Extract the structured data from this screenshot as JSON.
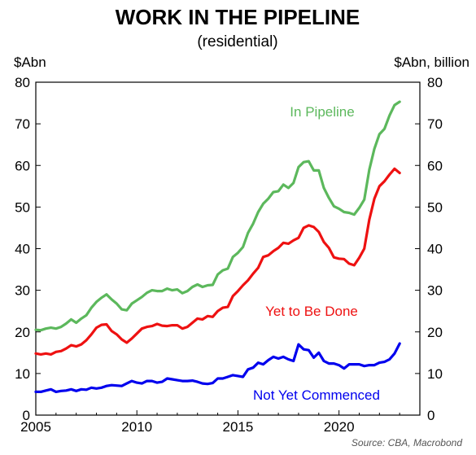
{
  "chart_data": {
    "type": "line",
    "title": "WORK IN THE PIPELINE",
    "subtitle": "(residential)",
    "ylabel_left": "$Abn",
    "ylabel_right": "$Abn, billion",
    "source": "Source: CBA, Macrobond",
    "xlim": [
      2005,
      2024
    ],
    "ylim": [
      0,
      80
    ],
    "x_ticks": [
      2005,
      2010,
      2015,
      2020
    ],
    "y_ticks": [
      0,
      10,
      20,
      30,
      40,
      50,
      60,
      70,
      80
    ],
    "grid": false,
    "colors": {
      "in_pipeline": "#5cb85c",
      "yet_to_be_done": "#ee1111",
      "not_yet_commenced": "#0000ee"
    },
    "x": [
      2005.0,
      2005.25,
      2005.5,
      2005.75,
      2006.0,
      2006.25,
      2006.5,
      2006.75,
      2007.0,
      2007.25,
      2007.5,
      2007.75,
      2008.0,
      2008.25,
      2008.5,
      2008.75,
      2009.0,
      2009.25,
      2009.5,
      2009.75,
      2010.0,
      2010.25,
      2010.5,
      2010.75,
      2011.0,
      2011.25,
      2011.5,
      2011.75,
      2012.0,
      2012.25,
      2012.5,
      2012.75,
      2013.0,
      2013.25,
      2013.5,
      2013.75,
      2014.0,
      2014.25,
      2014.5,
      2014.75,
      2015.0,
      2015.25,
      2015.5,
      2015.75,
      2016.0,
      2016.25,
      2016.5,
      2016.75,
      2017.0,
      2017.25,
      2017.5,
      2017.75,
      2018.0,
      2018.25,
      2018.5,
      2018.75,
      2019.0,
      2019.25,
      2019.5,
      2019.75,
      2020.0,
      2020.25,
      2020.5,
      2020.75,
      2021.0,
      2021.25,
      2021.5,
      2021.75,
      2022.0,
      2022.25,
      2022.5,
      2022.75,
      2023.0
    ],
    "series": [
      {
        "name": "In Pipeline",
        "key": "in_pipeline",
        "values": [
          20.5,
          20.4,
          20.8,
          21.0,
          20.8,
          21.2,
          22.0,
          23.0,
          22.2,
          23.2,
          24.0,
          25.8,
          27.2,
          28.2,
          29.0,
          27.8,
          26.8,
          25.4,
          25.2,
          26.8,
          27.6,
          28.4,
          29.4,
          30.0,
          29.8,
          29.8,
          30.4,
          30.0,
          30.2,
          29.3,
          29.8,
          30.8,
          31.4,
          30.8,
          31.2,
          31.3,
          33.8,
          34.8,
          35.2,
          38.0,
          39.0,
          40.4,
          43.8,
          46.0,
          48.8,
          50.8,
          52.0,
          53.6,
          53.8,
          55.4,
          54.6,
          55.8,
          59.6,
          60.8,
          61.0,
          58.8,
          58.8,
          54.6,
          52.2,
          50.2,
          49.6,
          48.8,
          48.6,
          48.2,
          49.8,
          51.8,
          59.0,
          64.0,
          67.5,
          68.8,
          72.0,
          74.5,
          75.3
        ]
      },
      {
        "name": "Yet to Be Done",
        "key": "yet_to_be_done",
        "values": [
          14.8,
          14.6,
          14.8,
          14.6,
          15.2,
          15.4,
          16.0,
          16.8,
          16.5,
          17.0,
          18.0,
          19.4,
          21.0,
          21.7,
          21.8,
          20.2,
          19.4,
          18.2,
          17.4,
          18.4,
          19.6,
          20.8,
          21.2,
          21.4,
          21.9,
          21.5,
          21.4,
          21.6,
          21.6,
          20.8,
          21.2,
          22.2,
          23.2,
          23.0,
          23.8,
          23.6,
          25.0,
          25.8,
          26.0,
          28.6,
          29.8,
          31.2,
          32.4,
          34.0,
          35.4,
          38.0,
          38.4,
          39.4,
          40.2,
          41.4,
          41.2,
          42.0,
          42.6,
          45.0,
          45.6,
          45.2,
          44.0,
          41.6,
          40.2,
          37.9,
          37.6,
          37.5,
          36.4,
          36.0,
          37.8,
          40.0,
          47.0,
          52.0,
          55.0,
          56.2,
          57.8,
          59.2,
          58.2
        ]
      },
      {
        "name": "Not Yet Commenced",
        "key": "not_yet_commenced",
        "values": [
          5.6,
          5.6,
          5.9,
          6.2,
          5.6,
          5.8,
          5.9,
          6.2,
          5.8,
          6.2,
          6.1,
          6.6,
          6.4,
          6.6,
          7.0,
          7.2,
          7.1,
          7.0,
          7.6,
          8.2,
          7.8,
          7.6,
          8.2,
          8.2,
          7.8,
          8.0,
          8.8,
          8.6,
          8.4,
          8.2,
          8.2,
          8.3,
          8.0,
          7.6,
          7.5,
          7.7,
          8.8,
          8.8,
          9.2,
          9.6,
          9.4,
          9.2,
          11.0,
          11.4,
          12.6,
          12.2,
          13.2,
          14.0,
          13.6,
          14.0,
          13.4,
          13.0,
          17.0,
          15.8,
          15.6,
          13.8,
          15.0,
          13.0,
          12.4,
          12.4,
          12.0,
          11.2,
          12.2,
          12.2,
          12.2,
          11.8,
          12.0,
          12.0,
          12.6,
          12.8,
          13.4,
          14.8,
          17.2
        ]
      }
    ],
    "labels": {
      "in_pipeline": "In Pipeline",
      "yet_to_be_done": "Yet to Be Done",
      "not_yet_commenced": "Not Yet Commenced"
    }
  }
}
